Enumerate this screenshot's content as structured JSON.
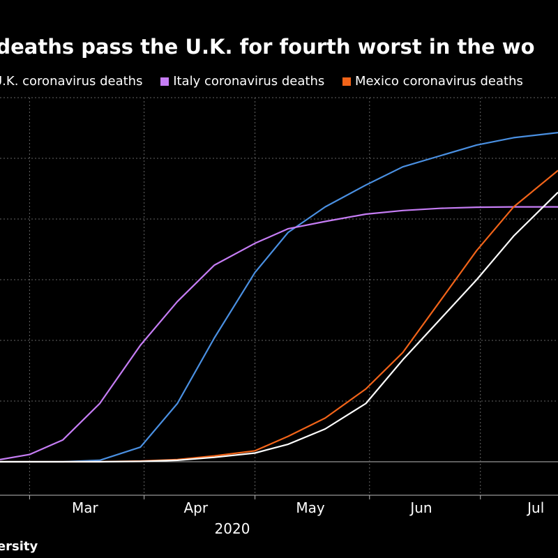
{
  "chart_data": {
    "type": "line",
    "title": "s deaths pass the U.K. for fourth worst in the wo",
    "x_tick_labels": [
      "Mar",
      "Apr",
      "May",
      "Jun",
      "Jul"
    ],
    "x_axis_year": "2020",
    "grid": true,
    "legend_position": "top",
    "x": [
      "2020-02-22",
      "2020-03-01",
      "2020-03-10",
      "2020-03-20",
      "2020-03-31",
      "2020-04-10",
      "2020-04-20",
      "2020-05-01",
      "2020-05-10",
      "2020-05-20",
      "2020-05-31",
      "2020-06-10",
      "2020-06-20",
      "2020-06-30",
      "2020-07-10",
      "2020-07-22"
    ],
    "ylim": [
      0,
      50000
    ],
    "series": [
      {
        "name": "U.K. coronavirus deaths",
        "color": "#4a90e2",
        "values": [
          0,
          0,
          0,
          200,
          2000,
          8000,
          17000,
          26000,
          31500,
          35000,
          38000,
          40500,
          42000,
          43500,
          44500,
          45200
        ]
      },
      {
        "name": "Italy coronavirus deaths",
        "color": "#c67df5",
        "values": [
          300,
          1000,
          3000,
          8000,
          16000,
          22000,
          27000,
          30000,
          32000,
          33000,
          34000,
          34500,
          34800,
          34950,
          35000,
          35000
        ]
      },
      {
        "name": "Mexico coronavirus deaths",
        "color": "#f26419",
        "values": [
          0,
          0,
          0,
          0,
          100,
          300,
          800,
          1500,
          3500,
          6000,
          10000,
          15000,
          22000,
          29000,
          35000,
          40000
        ]
      },
      {
        "name": "",
        "color": "#ffffff",
        "values": [
          0,
          0,
          0,
          0,
          50,
          200,
          600,
          1200,
          2400,
          4500,
          8000,
          14000,
          19500,
          25000,
          31000,
          37000
        ]
      }
    ]
  },
  "source_text": "iversity"
}
